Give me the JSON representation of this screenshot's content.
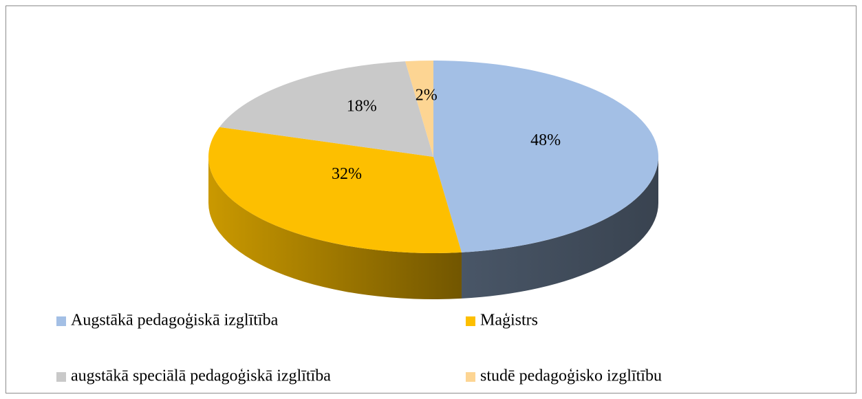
{
  "chart_data": {
    "type": "pie",
    "3d": true,
    "categories": [
      "Augstākā pedagoģiskā izglītība",
      "Maģistrs",
      "augstākā speciālā pedagoģiskā izglītība",
      "studē pedagoģisko izglītību"
    ],
    "values": [
      48,
      32,
      18,
      2
    ],
    "value_labels": [
      "48%",
      "32%",
      "18%",
      "2%"
    ],
    "colors": [
      "#a3bfe5",
      "#fdbf00",
      "#c9c9c9",
      "#fdd593"
    ],
    "legend": "bottom"
  }
}
